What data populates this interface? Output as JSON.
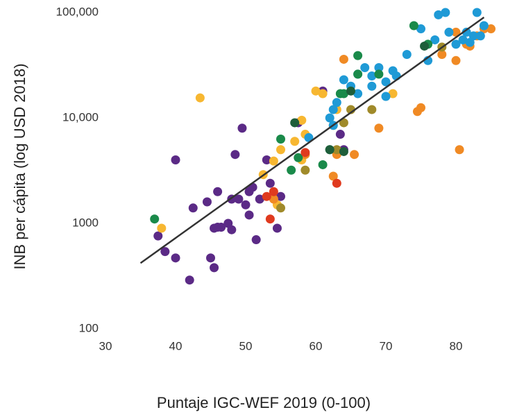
{
  "chart_data": {
    "type": "scatter",
    "x_label": "Puntaje IGC-WEF 2019 (0-100)",
    "y_label": "INB per cápita (log USD 2018)",
    "xlim": [
      30,
      85
    ],
    "xticks": [
      30,
      40,
      50,
      60,
      70,
      80
    ],
    "ylim": [
      100,
      100000
    ],
    "ylog": true,
    "yticks": [
      100,
      1000,
      {
        "value": 10000,
        "label": "10,000"
      },
      {
        "value": 100000,
        "label": "100,000"
      }
    ],
    "series": [
      {
        "color": "#5b2a86",
        "x": [
          37.5,
          38.5,
          40,
          40,
          42,
          42.5,
          44.5,
          45,
          45.5,
          45.5,
          46,
          46,
          46.5,
          47.5,
          48,
          48,
          48.5,
          49,
          49.5,
          50,
          50.5,
          50.5,
          51,
          51.5,
          52,
          53,
          53.5,
          54.5,
          55,
          57.5,
          61,
          63.5,
          64
        ],
        "values": [
          760,
          540,
          470,
          4000,
          290,
          1400,
          1600,
          470,
          380,
          900,
          2000,
          920,
          920,
          1000,
          870,
          1700,
          4500,
          1700,
          8000,
          1500,
          2000,
          1200,
          2200,
          700,
          1700,
          4000,
          2400,
          900,
          1800,
          9000,
          18000,
          7000,
          5000
        ]
      },
      {
        "color": "#f7b731",
        "x": [
          38,
          43.5,
          52.5,
          54,
          54.5,
          55,
          57,
          58,
          58.5,
          60,
          61,
          62.5,
          63,
          71,
          58
        ],
        "values": [
          900,
          15500,
          2900,
          3900,
          1500,
          5000,
          6000,
          4000,
          7000,
          18000,
          17000,
          8500,
          12000,
          17000,
          9500
        ]
      },
      {
        "color": "#f08a24",
        "x": [
          54,
          58.5,
          62.5,
          63,
          64,
          65.5,
          69,
          74.5,
          75,
          78,
          80,
          80.5,
          80,
          81.5,
          83,
          84,
          85,
          82
        ],
        "values": [
          1700,
          4500,
          2800,
          4500,
          36000,
          4500,
          8000,
          11500,
          12500,
          40000,
          35000,
          5000,
          65000,
          50000,
          60000,
          70000,
          70000,
          48000
        ]
      },
      {
        "color": "#1f9ad6",
        "x": [
          59,
          62,
          62.5,
          63,
          64,
          65,
          66,
          66,
          67,
          68,
          69,
          70,
          70,
          71,
          71.5,
          73,
          75,
          76,
          77,
          77.5,
          78.5,
          79,
          80,
          81,
          81.5,
          82,
          82.5,
          83,
          83.5,
          84,
          62.5,
          68
        ],
        "values": [
          6500,
          10000,
          8500,
          14000,
          23000,
          20000,
          17000,
          26000,
          30000,
          25000,
          30000,
          22000,
          16000,
          28000,
          25000,
          40000,
          70000,
          35000,
          55000,
          95000,
          100000,
          65000,
          50000,
          55000,
          65000,
          52000,
          60000,
          100000,
          60000,
          75000,
          12000,
          20000
        ]
      },
      {
        "color": "#1a8a4a",
        "x": [
          37,
          55,
          56.5,
          57.5,
          61,
          62,
          63.5,
          66,
          66,
          69,
          74,
          76,
          64
        ],
        "values": [
          1100,
          6300,
          3200,
          4200,
          3600,
          5000,
          17000,
          39000,
          26000,
          26000,
          75000,
          50000,
          17000
        ]
      },
      {
        "color": "#e03a1e",
        "x": [
          53,
          54,
          53.5,
          58.5,
          63
        ],
        "values": [
          1800,
          2000,
          1100,
          4700,
          2400
        ]
      },
      {
        "color": "#a08a2a",
        "x": [
          55,
          58.5,
          63,
          64,
          65,
          68,
          78
        ],
        "values": [
          1400,
          3200,
          5000,
          9000,
          12000,
          12000,
          47000
        ]
      },
      {
        "color": "#1e5e3a",
        "x": [
          57,
          62,
          64,
          65,
          75.5
        ],
        "values": [
          9000,
          5000,
          4800,
          18000,
          48000
        ]
      }
    ],
    "trendline": {
      "color": "#333333",
      "x": [
        35,
        84
      ],
      "values": [
        420,
        90000
      ]
    }
  }
}
